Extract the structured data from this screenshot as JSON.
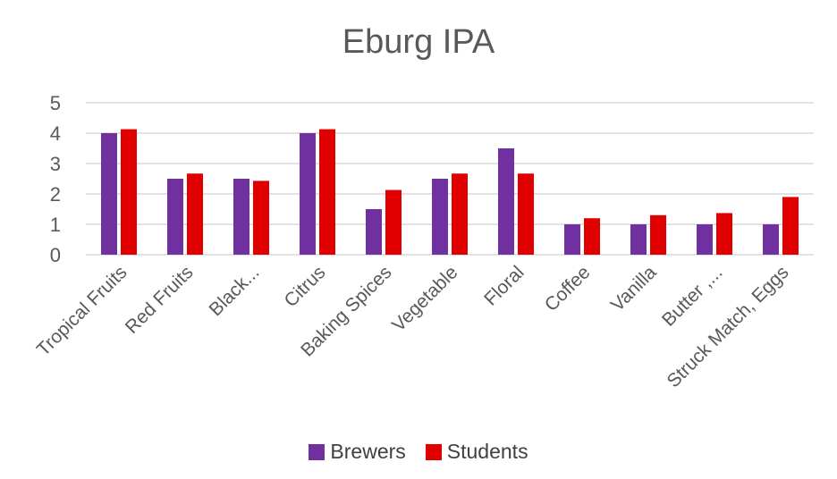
{
  "chart_data": {
    "type": "bar",
    "title": "Eburg IPA",
    "xlabel": "",
    "ylabel": "",
    "ylim": [
      0,
      5
    ],
    "yticks": [
      "0",
      "1",
      "2",
      "3",
      "4",
      "5"
    ],
    "grid": true,
    "legend_position": "bottom",
    "categories": [
      "Tropical Fruits",
      "Red Fruits",
      "Black...",
      "Citrus",
      "Baking Spices",
      "Vegetable",
      "Floral",
      "Coffee",
      "Vanilla",
      "Butter ,...",
      "Struck Match, Eggs"
    ],
    "series": [
      {
        "name": "Brewers",
        "color": "#7030A0",
        "values": [
          4.0,
          2.5,
          2.5,
          4.0,
          1.5,
          2.5,
          3.5,
          1.0,
          1.0,
          1.0,
          1.0
        ]
      },
      {
        "name": "Students",
        "color": "#E00000",
        "values": [
          4.13,
          2.67,
          2.43,
          4.13,
          2.13,
          2.67,
          2.67,
          1.2,
          1.3,
          1.37,
          1.9
        ]
      }
    ]
  }
}
